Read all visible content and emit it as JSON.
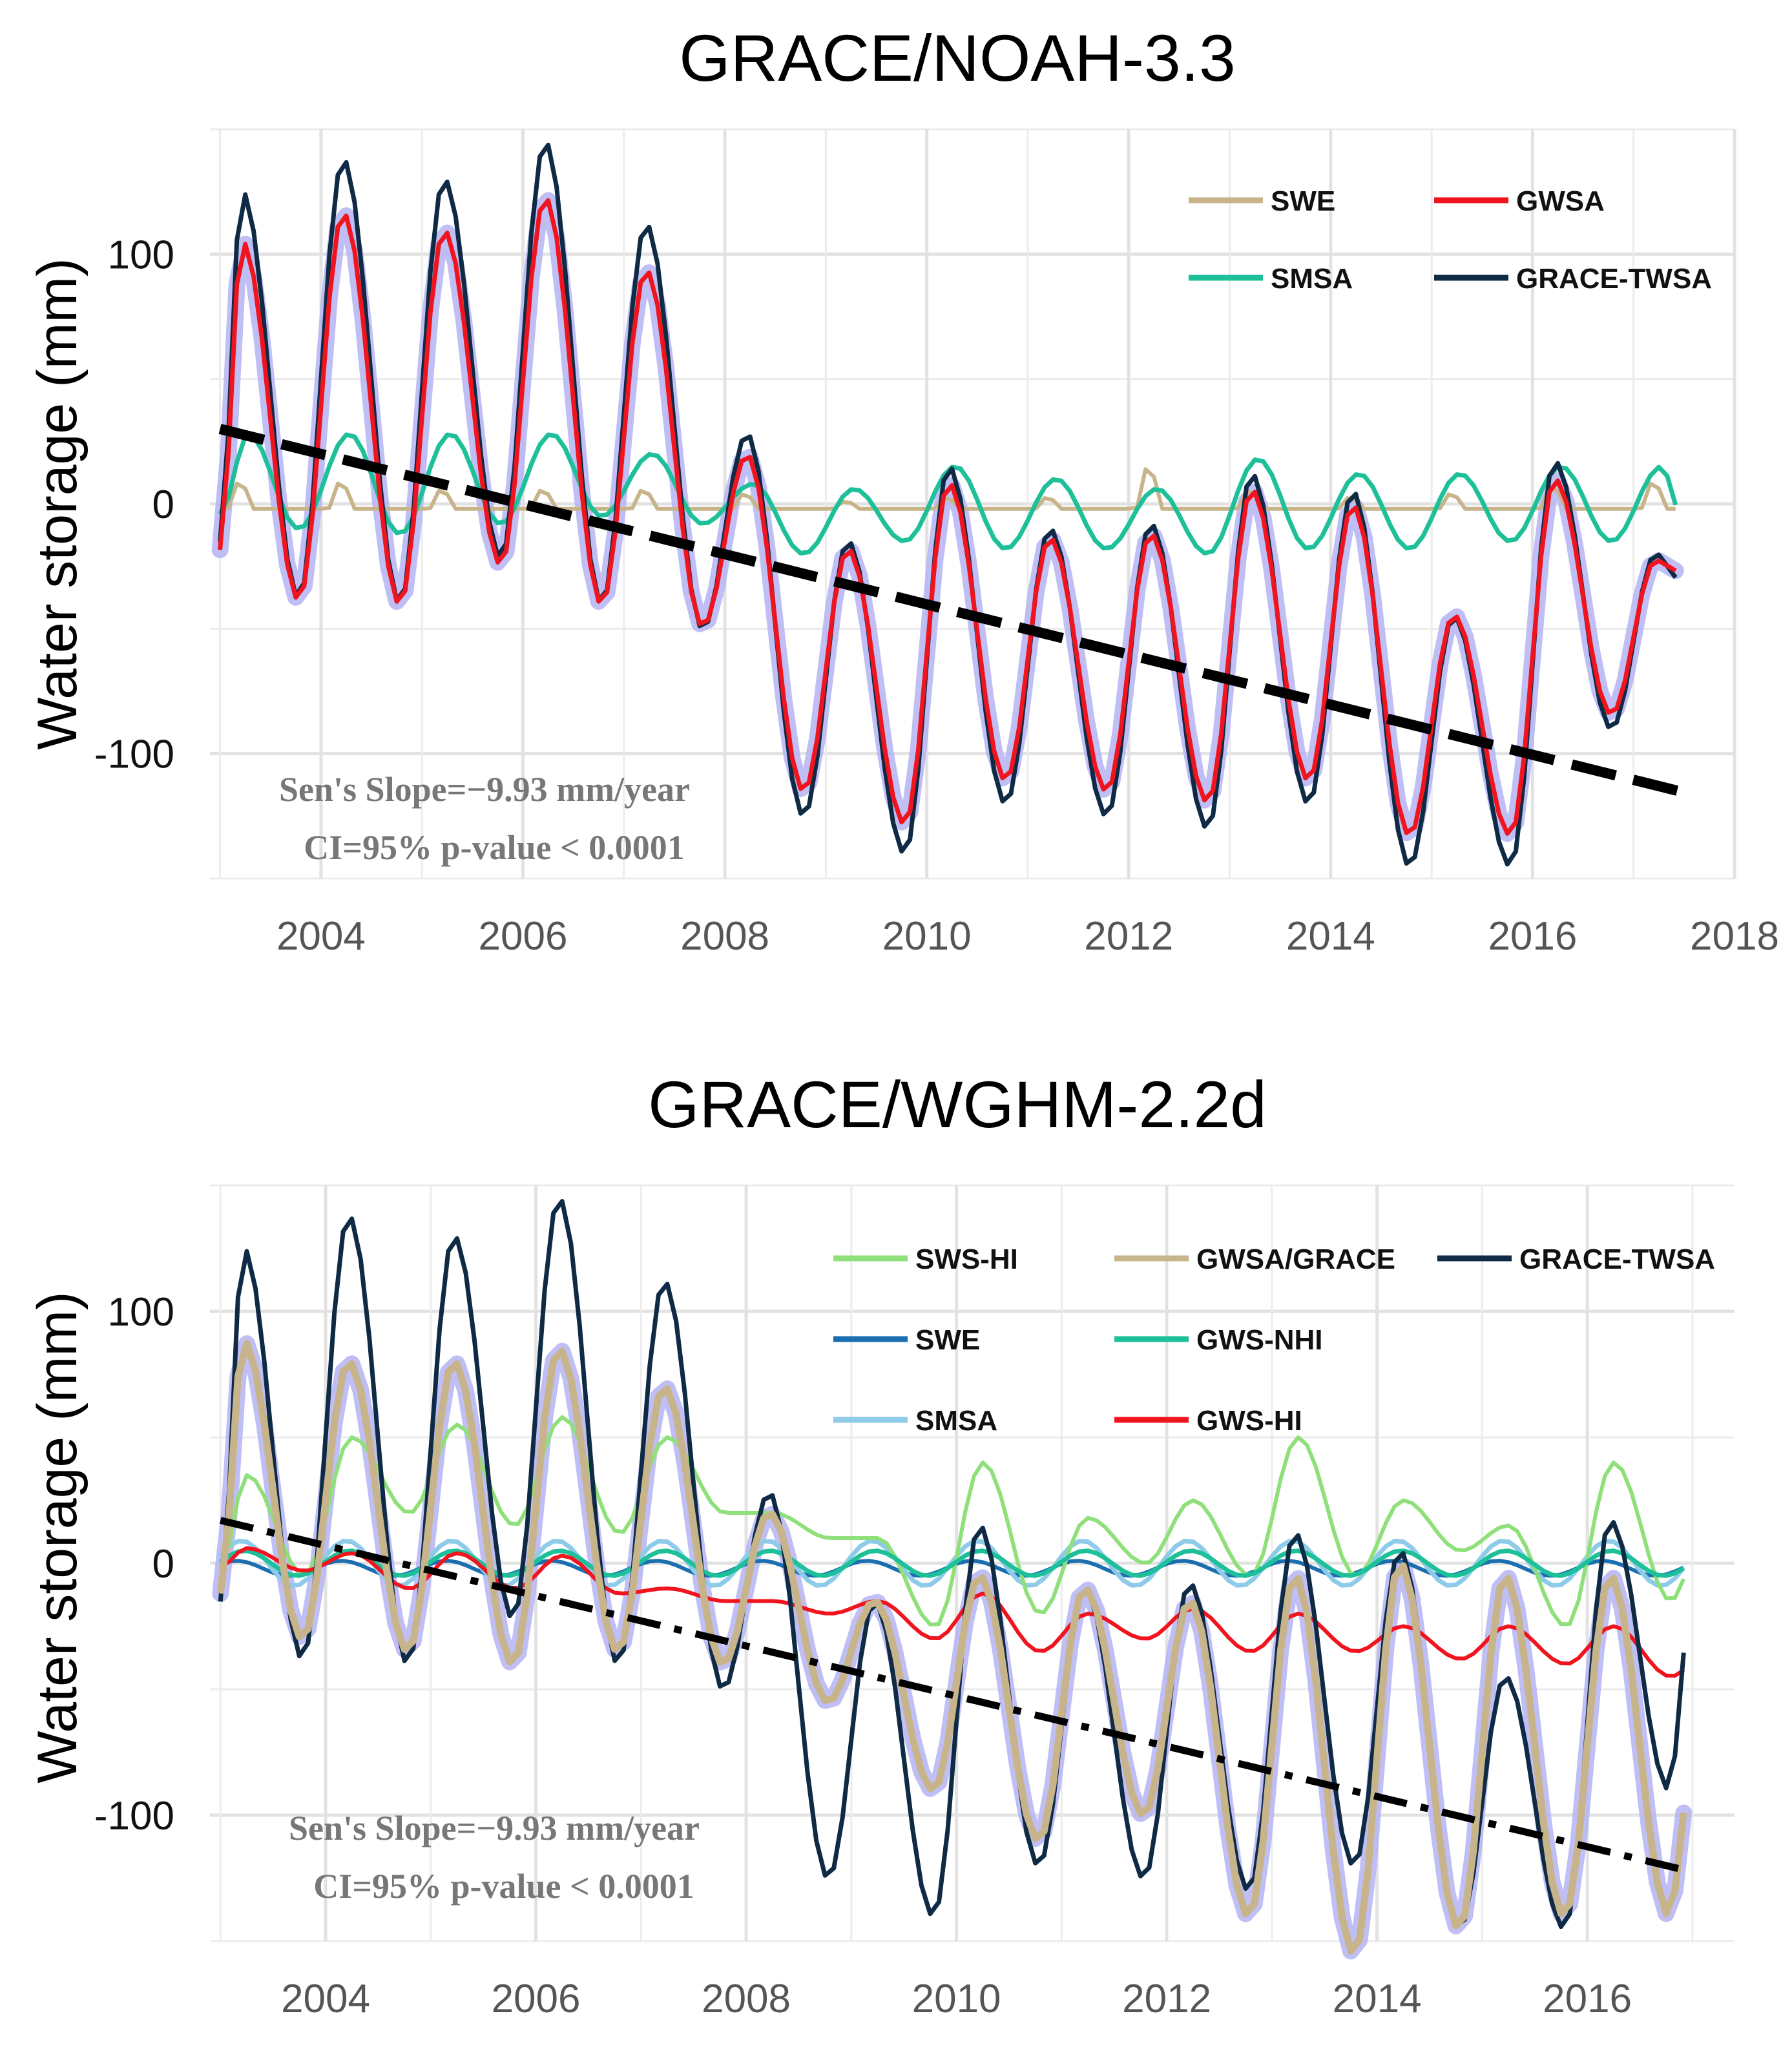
{
  "chart_data": [
    {
      "type": "line",
      "title": "GRACE/NOAH-3.3",
      "xlabel": "",
      "ylabel": "Water storage (mm)",
      "xlim": [
        2002.9,
        2018
      ],
      "ylim": [
        -150,
        150
      ],
      "grid": true,
      "x_ticks": [
        2004,
        2006,
        2008,
        2010,
        2012,
        2014,
        2016,
        2018
      ],
      "y_ticks": [
        -100,
        0,
        100
      ],
      "y_tick_labels": [
        "-100",
        "0",
        "100"
      ],
      "legend_position": "top-right",
      "legend_rows": [
        [
          "SWE",
          "GWSA"
        ],
        [
          "SMSA",
          "GRACE-TWSA"
        ]
      ],
      "annotations": [
        "Sen's Slope=−9.93 mm/year",
        "CI=95% p-value < 0.0001"
      ],
      "x_end": 2017.45,
      "series": [
        {
          "name": "SWE",
          "color": "#c8b48a",
          "kind": "swe"
        },
        {
          "name": "GWSA",
          "color": "#f0141e",
          "kind": "gwsa"
        },
        {
          "name": "SMSA",
          "color": "#1ec09a",
          "kind": "smsa"
        },
        {
          "name": "GRACE-TWSA",
          "color": "#0f2a44",
          "kind": "twsa"
        }
      ],
      "trend": {
        "name": "Sen's Slope",
        "x": [
          2003.0,
          2017.45
        ],
        "y": [
          30,
          -115
        ],
        "color": "#000000"
      },
      "model": {
        "twsa_peaks": [
          125,
          138,
          130,
          145,
          112,
          28,
          -15,
          15,
          -10,
          -8,
          12,
          5,
          -45,
          17,
          -20
        ],
        "twsa_troughs": [
          -38,
          -40,
          -22,
          -40,
          -50,
          -125,
          -140,
          -120,
          -125,
          -130,
          -120,
          -145,
          -145,
          -90
        ],
        "smsa_peaks": [
          28,
          28,
          28,
          28,
          20,
          8,
          6,
          15,
          10,
          6,
          18,
          12,
          12,
          15,
          15
        ],
        "smsa_troughs": [
          -10,
          -12,
          -8,
          -5,
          -8,
          -20,
          -15,
          -18,
          -18,
          -20,
          -18,
          -18,
          -15,
          -15
        ],
        "swe_peaks": [
          12,
          12,
          8,
          8,
          8,
          6,
          2,
          4,
          4,
          20,
          8,
          4,
          6,
          10,
          12
        ],
        "swe_base": -2
      }
    },
    {
      "type": "line",
      "title": "GRACE/WGHM-2.2d",
      "xlabel": "",
      "ylabel": "Water storage (mm)",
      "xlim": [
        2002.9,
        2017.4
      ],
      "ylim": [
        -150,
        150
      ],
      "grid": true,
      "x_ticks": [
        2004,
        2006,
        2008,
        2010,
        2012,
        2014,
        2016
      ],
      "y_ticks": [
        -100,
        0,
        100
      ],
      "y_tick_labels": [
        "-100",
        "0",
        "100"
      ],
      "legend_position": "top-right",
      "legend_rows": [
        [
          "SWS-HI",
          "GWSA/GRACE",
          "GRACE-TWSA"
        ],
        [
          "SWE",
          "GWS-NHI"
        ],
        [
          "SMSA",
          "GWS-HI"
        ]
      ],
      "annotations": [
        "Sen's Slope=−9.93 mm/year",
        "CI=95% p-value < 0.0001"
      ],
      "x_end": 2016.95,
      "series": [
        {
          "name": "SWS-HI",
          "color": "#8fe07a",
          "kind": "swshi"
        },
        {
          "name": "GWSA/GRACE",
          "color": "#c8b48a",
          "kind": "gwsag"
        },
        {
          "name": "GRACE-TWSA",
          "color": "#0f2a44",
          "kind": "twsa"
        },
        {
          "name": "SWE",
          "color": "#1a6fb0",
          "kind": "swe"
        },
        {
          "name": "GWS-NHI",
          "color": "#1ec09a",
          "kind": "gwsnhi"
        },
        {
          "name": "SMSA",
          "color": "#8ecbe8",
          "kind": "smsa"
        },
        {
          "name": "GWS-HI",
          "color": "#f0141e",
          "kind": "gwshi"
        }
      ],
      "trend": {
        "name": "Sen's Slope",
        "x": [
          2003.0,
          2016.95
        ],
        "y": [
          17,
          -122
        ],
        "color": "#000000"
      },
      "model": {
        "twsa_peaks": [
          125,
          138,
          130,
          145,
          112,
          28,
          -15,
          15,
          -10,
          -8,
          12,
          5,
          -45,
          17
        ],
        "twsa_troughs": [
          -38,
          -40,
          -22,
          -40,
          -50,
          -125,
          -140,
          -120,
          -125,
          -130,
          -120,
          -145,
          -145,
          -90
        ],
        "gwsag_peaks": [
          88,
          80,
          80,
          85,
          70,
          20,
          -15,
          -5,
          -10,
          -15,
          -5,
          0,
          -5,
          -5
        ],
        "gwsag_troughs": [
          -30,
          -35,
          -40,
          -35,
          -40,
          -55,
          -90,
          -110,
          -100,
          -140,
          -155,
          -145,
          -140,
          -140
        ],
        "gwsag_end": -95,
        "swshi_peaks": [
          35,
          50,
          55,
          58,
          50,
          20,
          10,
          40,
          18,
          25,
          50,
          25,
          15,
          40
        ],
        "swshi_troughs": [
          -5,
          20,
          15,
          12,
          20,
          10,
          -25,
          -20,
          0,
          -5,
          -5,
          5,
          -25,
          -15
        ],
        "swshi_end": -5,
        "gwshi_peaks": [
          6,
          4,
          4,
          3,
          -10,
          -15,
          -15,
          -12,
          -20,
          -18,
          -20,
          -25,
          -25,
          -25
        ],
        "gwshi_troughs": [
          -3,
          -10,
          -10,
          -12,
          -15,
          -20,
          -30,
          -35,
          -30,
          -35,
          -35,
          -38,
          -40,
          -45
        ],
        "gwshi_end": -42
      }
    }
  ]
}
